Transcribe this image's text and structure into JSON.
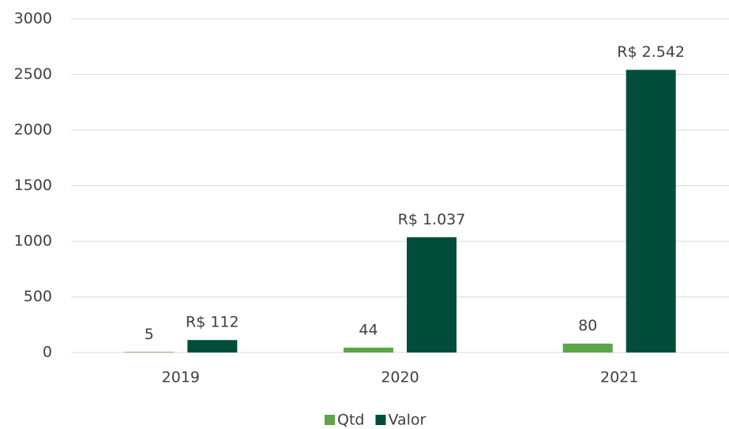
{
  "chart_data": {
    "type": "bar",
    "categories": [
      "2019",
      "2020",
      "2021"
    ],
    "series": [
      {
        "name": "Qtd",
        "color": "#5ba646",
        "values": [
          5,
          44,
          80
        ]
      },
      {
        "name": "Valor",
        "color": "#004d3b",
        "values": [
          112,
          1037,
          2542
        ],
        "value_labels": [
          "R$ 112",
          "R$ 1.037",
          "R$ 2.542"
        ]
      }
    ],
    "ylim": [
      0,
      3000
    ],
    "yticks": [
      0,
      500,
      1000,
      1500,
      2000,
      2500,
      3000
    ],
    "grid": true,
    "legend": "bottom"
  }
}
